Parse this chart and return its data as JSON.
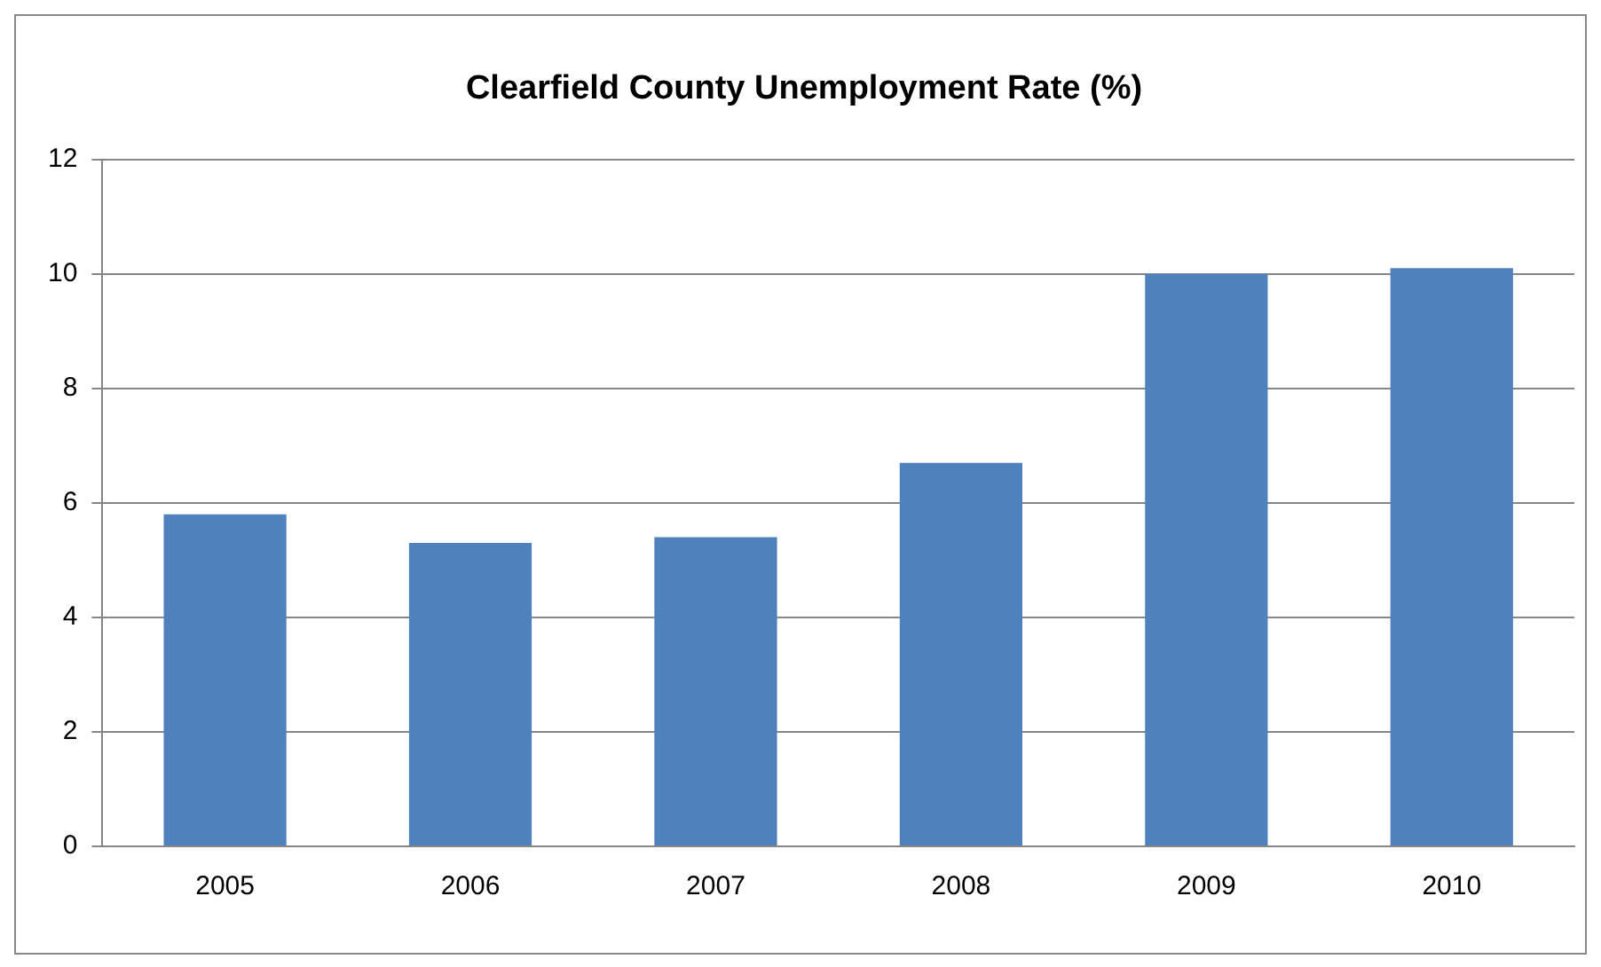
{
  "chart_data": {
    "type": "bar",
    "title": "Clearfield County Unemployment Rate (%)",
    "categories": [
      "2005",
      "2006",
      "2007",
      "2008",
      "2009",
      "2010"
    ],
    "values": [
      5.8,
      5.3,
      5.4,
      6.7,
      10.0,
      10.1
    ],
    "color": "#4f81bd",
    "ylim": [
      0,
      12
    ],
    "yticks": [
      0,
      2,
      4,
      6,
      8,
      10,
      12
    ],
    "grid": "y",
    "legend": false
  }
}
